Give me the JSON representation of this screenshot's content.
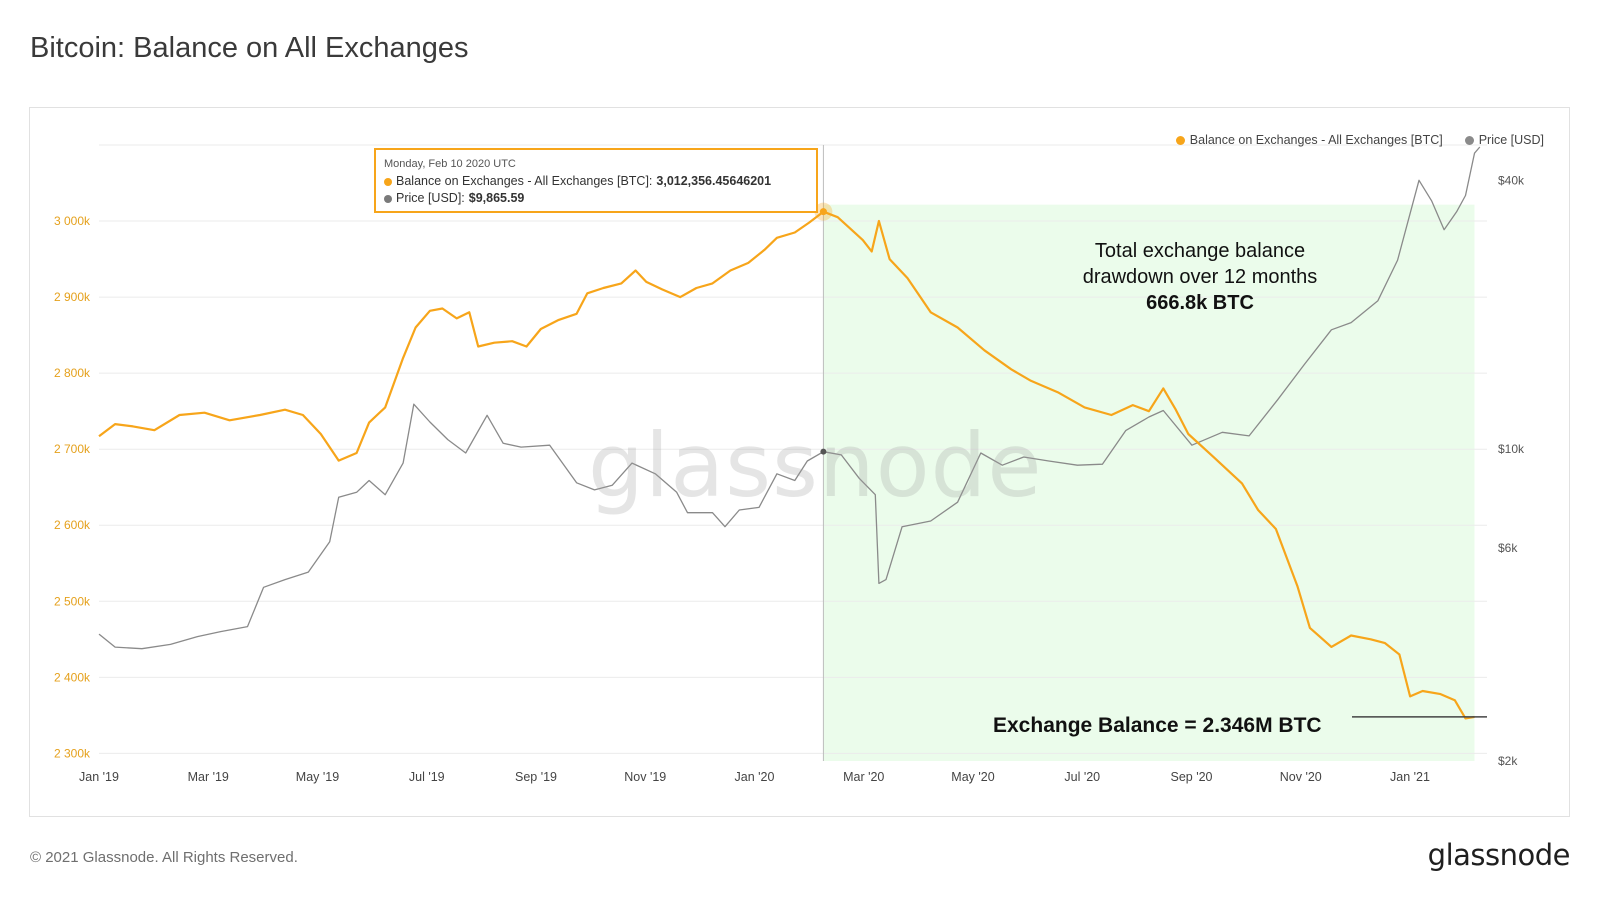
{
  "page": {
    "title": "Bitcoin: Balance on All Exchanges",
    "copyright": "© 2021 Glassnode. All Rights Reserved.",
    "logo_text": "glassnode",
    "watermark": "glassnode"
  },
  "colors": {
    "balance": "#F7A51A",
    "price": "#8A8A8A",
    "highlight": "#EBFCEB",
    "grid": "#EBEBEB",
    "left_axis_text": "#E5A11D"
  },
  "legend": [
    {
      "label": "Balance on Exchanges - All Exchanges [BTC]",
      "color": "#F7A51A"
    },
    {
      "label": "Price [USD]",
      "color": "#8A8A8A"
    }
  ],
  "tooltip": {
    "date": "Monday, Feb 10 2020 UTC",
    "balance_label": "Balance on Exchanges - All Exchanges [BTC]:",
    "balance_value": "3,012,356.45646201",
    "price_label": "Price [USD]:",
    "price_value": "$9,865.59"
  },
  "annotation": {
    "line1": "Total exchange balance",
    "line2": "drawdown over 12 months",
    "line3": "666.8k BTC"
  },
  "balance_callout": "Exchange Balance = 2.346M BTC",
  "chart_data": {
    "type": "line",
    "x_ticks": [
      "Jan '19",
      "Mar '19",
      "May '19",
      "Jul '19",
      "Sep '19",
      "Nov '19",
      "Jan '20",
      "Mar '20",
      "May '20",
      "Jul '20",
      "Sep '20",
      "Nov '20",
      "Jan '21"
    ],
    "y_left_ticks": [
      {
        "value": 2300000,
        "label": "2 300k"
      },
      {
        "value": 2400000,
        "label": "2 400k"
      },
      {
        "value": 2500000,
        "label": "2 500k"
      },
      {
        "value": 2600000,
        "label": "2 600k"
      },
      {
        "value": 2700000,
        "label": "2 700k"
      },
      {
        "value": 2800000,
        "label": "2 800k"
      },
      {
        "value": 2900000,
        "label": "2 900k"
      },
      {
        "value": 3000000,
        "label": "3 000k"
      }
    ],
    "y_left_range": [
      2290000,
      3100000
    ],
    "y_right_scale": "log",
    "y_right_ticks": [
      {
        "value": 2000,
        "label": "$2k"
      },
      {
        "value": 6000,
        "label": "$6k"
      },
      {
        "value": 10000,
        "label": "$10k"
      },
      {
        "value": 40000,
        "label": "$40k"
      }
    ],
    "y_right_range": [
      2000,
      48000
    ],
    "highlight_range": [
      "2020-02-10",
      "2021-02-08"
    ],
    "marker_date": "2020-02-10",
    "x_range": [
      "2019-01-01",
      "2021-02-15"
    ],
    "grid": true,
    "legend_position": "top-right",
    "series": [
      {
        "name": "Balance on Exchanges - All Exchanges [BTC]",
        "axis": "left",
        "points": [
          [
            "2019-01-01",
            2717000
          ],
          [
            "2019-01-10",
            2733000
          ],
          [
            "2019-01-20",
            2730000
          ],
          [
            "2019-02-01",
            2725000
          ],
          [
            "2019-02-15",
            2745000
          ],
          [
            "2019-03-01",
            2748000
          ],
          [
            "2019-03-15",
            2738000
          ],
          [
            "2019-04-01",
            2745000
          ],
          [
            "2019-04-15",
            2752000
          ],
          [
            "2019-04-25",
            2745000
          ],
          [
            "2019-05-05",
            2720000
          ],
          [
            "2019-05-15",
            2685000
          ],
          [
            "2019-05-25",
            2695000
          ],
          [
            "2019-06-01",
            2735000
          ],
          [
            "2019-06-10",
            2755000
          ],
          [
            "2019-06-20",
            2820000
          ],
          [
            "2019-06-27",
            2860000
          ],
          [
            "2019-07-05",
            2882000
          ],
          [
            "2019-07-12",
            2885000
          ],
          [
            "2019-07-20",
            2872000
          ],
          [
            "2019-07-27",
            2880000
          ],
          [
            "2019-08-01",
            2835000
          ],
          [
            "2019-08-10",
            2840000
          ],
          [
            "2019-08-20",
            2842000
          ],
          [
            "2019-08-28",
            2835000
          ],
          [
            "2019-09-05",
            2858000
          ],
          [
            "2019-09-15",
            2870000
          ],
          [
            "2019-09-25",
            2878000
          ],
          [
            "2019-10-01",
            2905000
          ],
          [
            "2019-10-10",
            2912000
          ],
          [
            "2019-10-20",
            2918000
          ],
          [
            "2019-10-28",
            2935000
          ],
          [
            "2019-11-03",
            2920000
          ],
          [
            "2019-11-12",
            2910000
          ],
          [
            "2019-11-22",
            2900000
          ],
          [
            "2019-12-01",
            2912000
          ],
          [
            "2019-12-10",
            2918000
          ],
          [
            "2019-12-20",
            2935000
          ],
          [
            "2019-12-30",
            2945000
          ],
          [
            "2020-01-08",
            2962000
          ],
          [
            "2020-01-15",
            2978000
          ],
          [
            "2020-01-25",
            2985000
          ],
          [
            "2020-02-02",
            2998000
          ],
          [
            "2020-02-10",
            3012356
          ],
          [
            "2020-02-18",
            3005000
          ],
          [
            "2020-02-26",
            2988000
          ],
          [
            "2020-03-03",
            2975000
          ],
          [
            "2020-03-08",
            2960000
          ],
          [
            "2020-03-12",
            3000000
          ],
          [
            "2020-03-18",
            2950000
          ],
          [
            "2020-03-28",
            2925000
          ],
          [
            "2020-04-10",
            2880000
          ],
          [
            "2020-04-25",
            2860000
          ],
          [
            "2020-05-10",
            2830000
          ],
          [
            "2020-05-25",
            2805000
          ],
          [
            "2020-06-05",
            2790000
          ],
          [
            "2020-06-20",
            2775000
          ],
          [
            "2020-07-05",
            2755000
          ],
          [
            "2020-07-20",
            2745000
          ],
          [
            "2020-08-01",
            2758000
          ],
          [
            "2020-08-10",
            2750000
          ],
          [
            "2020-08-18",
            2780000
          ],
          [
            "2020-08-25",
            2752000
          ],
          [
            "2020-09-01",
            2720000
          ],
          [
            "2020-09-15",
            2690000
          ],
          [
            "2020-10-01",
            2655000
          ],
          [
            "2020-10-10",
            2620000
          ],
          [
            "2020-10-20",
            2595000
          ],
          [
            "2020-11-01",
            2520000
          ],
          [
            "2020-11-08",
            2465000
          ],
          [
            "2020-11-20",
            2440000
          ],
          [
            "2020-12-01",
            2455000
          ],
          [
            "2020-12-12",
            2450000
          ],
          [
            "2020-12-20",
            2445000
          ],
          [
            "2020-12-28",
            2430000
          ],
          [
            "2021-01-03",
            2375000
          ],
          [
            "2021-01-10",
            2382000
          ],
          [
            "2021-01-20",
            2378000
          ],
          [
            "2021-01-28",
            2370000
          ],
          [
            "2021-02-03",
            2346000
          ],
          [
            "2021-02-08",
            2348000
          ]
        ]
      },
      {
        "name": "Price [USD]",
        "axis": "right",
        "points": [
          [
            "2019-01-01",
            3850
          ],
          [
            "2019-01-10",
            3600
          ],
          [
            "2019-01-25",
            3570
          ],
          [
            "2019-02-10",
            3650
          ],
          [
            "2019-02-25",
            3800
          ],
          [
            "2019-03-10",
            3900
          ],
          [
            "2019-03-25",
            4000
          ],
          [
            "2019-04-03",
            4900
          ],
          [
            "2019-04-15",
            5100
          ],
          [
            "2019-04-28",
            5300
          ],
          [
            "2019-05-10",
            6200
          ],
          [
            "2019-05-15",
            7800
          ],
          [
            "2019-05-25",
            8000
          ],
          [
            "2019-06-01",
            8500
          ],
          [
            "2019-06-10",
            7900
          ],
          [
            "2019-06-20",
            9300
          ],
          [
            "2019-06-26",
            12600
          ],
          [
            "2019-07-05",
            11500
          ],
          [
            "2019-07-15",
            10500
          ],
          [
            "2019-07-25",
            9800
          ],
          [
            "2019-08-06",
            11900
          ],
          [
            "2019-08-15",
            10300
          ],
          [
            "2019-08-25",
            10100
          ],
          [
            "2019-09-10",
            10200
          ],
          [
            "2019-09-25",
            8400
          ],
          [
            "2019-10-05",
            8100
          ],
          [
            "2019-10-15",
            8300
          ],
          [
            "2019-10-26",
            9300
          ],
          [
            "2019-11-08",
            8800
          ],
          [
            "2019-11-20",
            8000
          ],
          [
            "2019-11-26",
            7200
          ],
          [
            "2019-12-10",
            7200
          ],
          [
            "2019-12-17",
            6700
          ],
          [
            "2019-12-25",
            7300
          ],
          [
            "2020-01-05",
            7400
          ],
          [
            "2020-01-15",
            8800
          ],
          [
            "2020-01-25",
            8500
          ],
          [
            "2020-02-01",
            9400
          ],
          [
            "2020-02-10",
            9865
          ],
          [
            "2020-02-20",
            9700
          ],
          [
            "2020-03-01",
            8600
          ],
          [
            "2020-03-10",
            7900
          ],
          [
            "2020-03-12",
            5000
          ],
          [
            "2020-03-16",
            5100
          ],
          [
            "2020-03-25",
            6700
          ],
          [
            "2020-04-10",
            6900
          ],
          [
            "2020-04-25",
            7600
          ],
          [
            "2020-05-08",
            9800
          ],
          [
            "2020-05-20",
            9200
          ],
          [
            "2020-06-01",
            9600
          ],
          [
            "2020-06-15",
            9400
          ],
          [
            "2020-07-01",
            9200
          ],
          [
            "2020-07-15",
            9250
          ],
          [
            "2020-07-28",
            11000
          ],
          [
            "2020-08-10",
            11800
          ],
          [
            "2020-08-18",
            12200
          ],
          [
            "2020-09-03",
            10200
          ],
          [
            "2020-09-20",
            10900
          ],
          [
            "2020-10-05",
            10700
          ],
          [
            "2020-10-21",
            12900
          ],
          [
            "2020-11-05",
            15500
          ],
          [
            "2020-11-20",
            18500
          ],
          [
            "2020-12-01",
            19200
          ],
          [
            "2020-12-16",
            21500
          ],
          [
            "2020-12-27",
            26500
          ],
          [
            "2021-01-08",
            40000
          ],
          [
            "2021-01-15",
            36000
          ],
          [
            "2021-01-22",
            31000
          ],
          [
            "2021-01-29",
            34000
          ],
          [
            "2021-02-03",
            37000
          ],
          [
            "2021-02-08",
            46000
          ],
          [
            "2021-02-11",
            47500
          ]
        ]
      }
    ]
  }
}
